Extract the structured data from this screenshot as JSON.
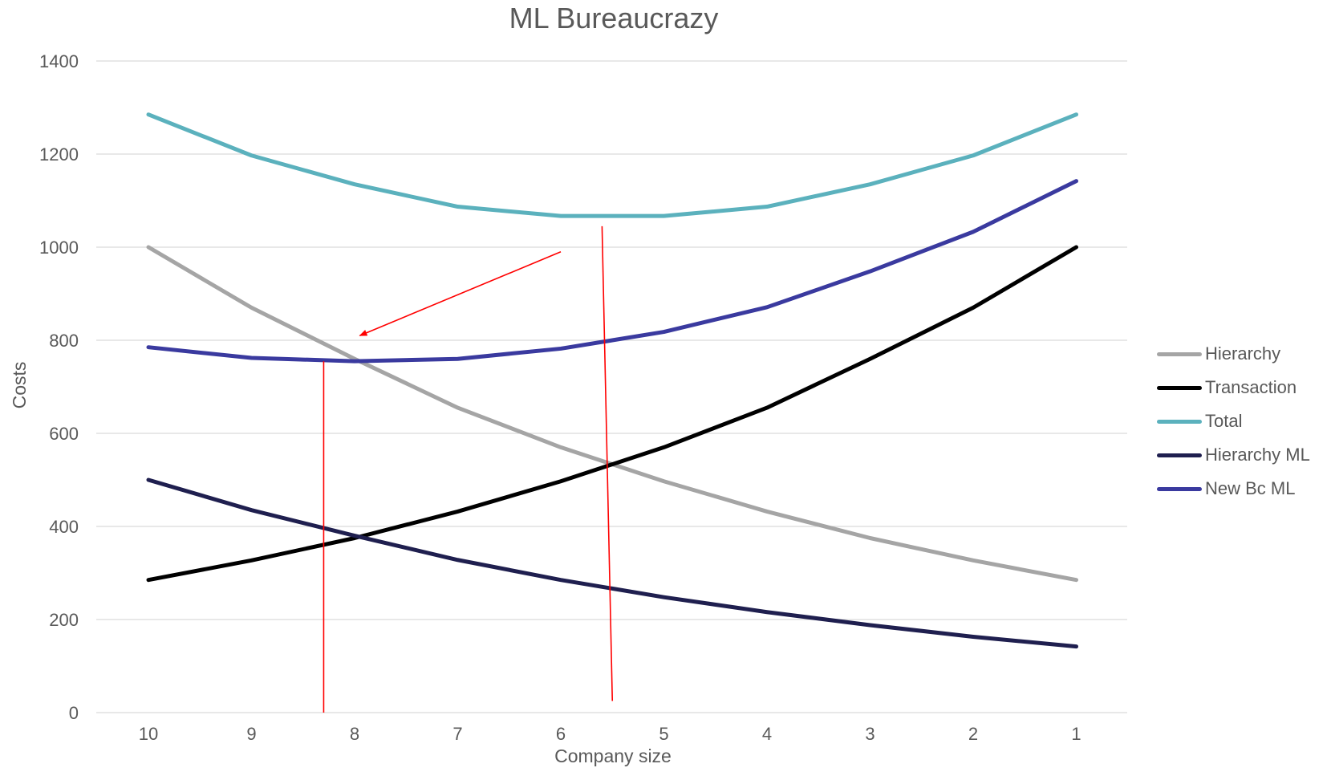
{
  "chart_data": {
    "type": "line",
    "title": "ML Bureaucrazy",
    "xlabel": "Company size",
    "ylabel": "Costs",
    "categories": [
      "10",
      "9",
      "8",
      "7",
      "6",
      "5",
      "4",
      "3",
      "2",
      "1"
    ],
    "ylim": [
      0,
      1400
    ],
    "yticks": [
      0,
      200,
      400,
      600,
      800,
      1000,
      1200,
      1400
    ],
    "grid": true,
    "legend_position": "right",
    "series": [
      {
        "name": "Hierarchy",
        "color": "#a5a5a5",
        "values": [
          1000,
          870,
          760,
          655,
          570,
          497,
          432,
          375,
          327,
          285
        ]
      },
      {
        "name": "Transaction",
        "color": "#000000",
        "values": [
          285,
          327,
          375,
          432,
          497,
          570,
          655,
          760,
          870,
          1000
        ]
      },
      {
        "name": "Total",
        "color": "#5bb1bd",
        "values": [
          1285,
          1197,
          1135,
          1087,
          1067,
          1067,
          1087,
          1135,
          1197,
          1285
        ]
      },
      {
        "name": "Hierarchy ML",
        "color": "#1f1f4f",
        "values": [
          500,
          435,
          380,
          328,
          285,
          248,
          216,
          188,
          163,
          142
        ]
      },
      {
        "name": "New Bc ML",
        "color": "#3a3a9f",
        "values": [
          785,
          762,
          755,
          760,
          782,
          818,
          871,
          948,
          1033,
          1142
        ]
      }
    ],
    "annotations": [
      {
        "type": "line",
        "color": "#ff0000",
        "from": {
          "x": 8.3,
          "y": 755
        },
        "to": {
          "x": 8.3,
          "y": 0
        }
      },
      {
        "type": "line",
        "color": "#ff0000",
        "from": {
          "x": 5.6,
          "y": 1045
        },
        "to": {
          "x": 5.5,
          "y": 25
        }
      },
      {
        "type": "arrow",
        "color": "#ff0000",
        "from": {
          "x": 6.0,
          "y": 990
        },
        "to": {
          "x": 7.95,
          "y": 810
        }
      }
    ]
  }
}
